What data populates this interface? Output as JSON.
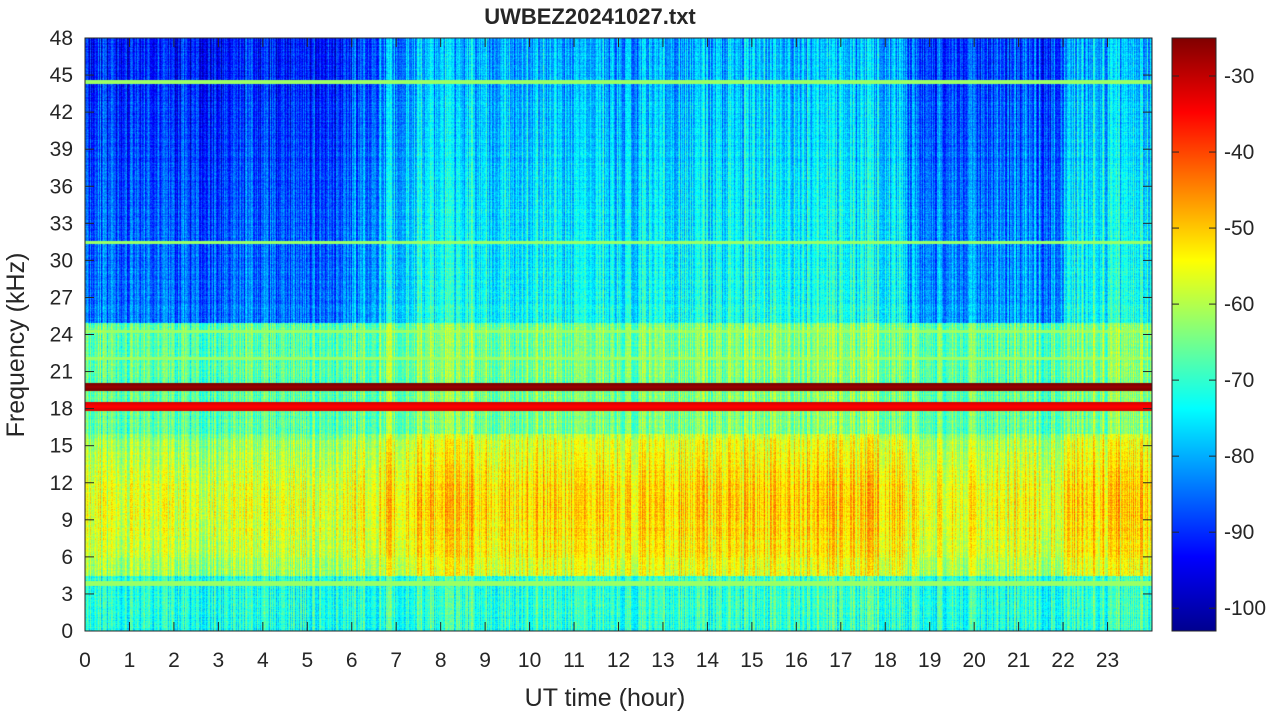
{
  "chart_data": {
    "type": "heatmap",
    "title": "UWBEZ20241027.txt",
    "xlabel": "UT time (hour)",
    "ylabel": "Frequency (kHz)",
    "xlim": [
      0,
      24
    ],
    "ylim": [
      0,
      48
    ],
    "x_ticks": [
      "0",
      "1",
      "2",
      "3",
      "4",
      "5",
      "6",
      "7",
      "8",
      "9",
      "10",
      "11",
      "12",
      "13",
      "14",
      "15",
      "16",
      "17",
      "18",
      "19",
      "20",
      "21",
      "22",
      "23"
    ],
    "y_ticks": [
      "0",
      "3",
      "6",
      "9",
      "12",
      "15",
      "18",
      "21",
      "24",
      "27",
      "30",
      "33",
      "36",
      "39",
      "42",
      "45",
      "48"
    ],
    "colorbar": {
      "colormap": "jet",
      "clim": [
        -103,
        -25
      ],
      "ticks": [
        "-100",
        "-90",
        "-80",
        "-70",
        "-60",
        "-50",
        "-40",
        "-30"
      ]
    },
    "grid": false,
    "features": [
      {
        "type": "constant-tone",
        "frequency_khz": 19.8,
        "level_db": -27
      },
      {
        "type": "constant-tone",
        "frequency_khz": 18.2,
        "level_db": -35
      },
      {
        "type": "broadband-band",
        "frequency_khz": [
          5,
          16
        ],
        "level_db": -48
      }
    ]
  }
}
